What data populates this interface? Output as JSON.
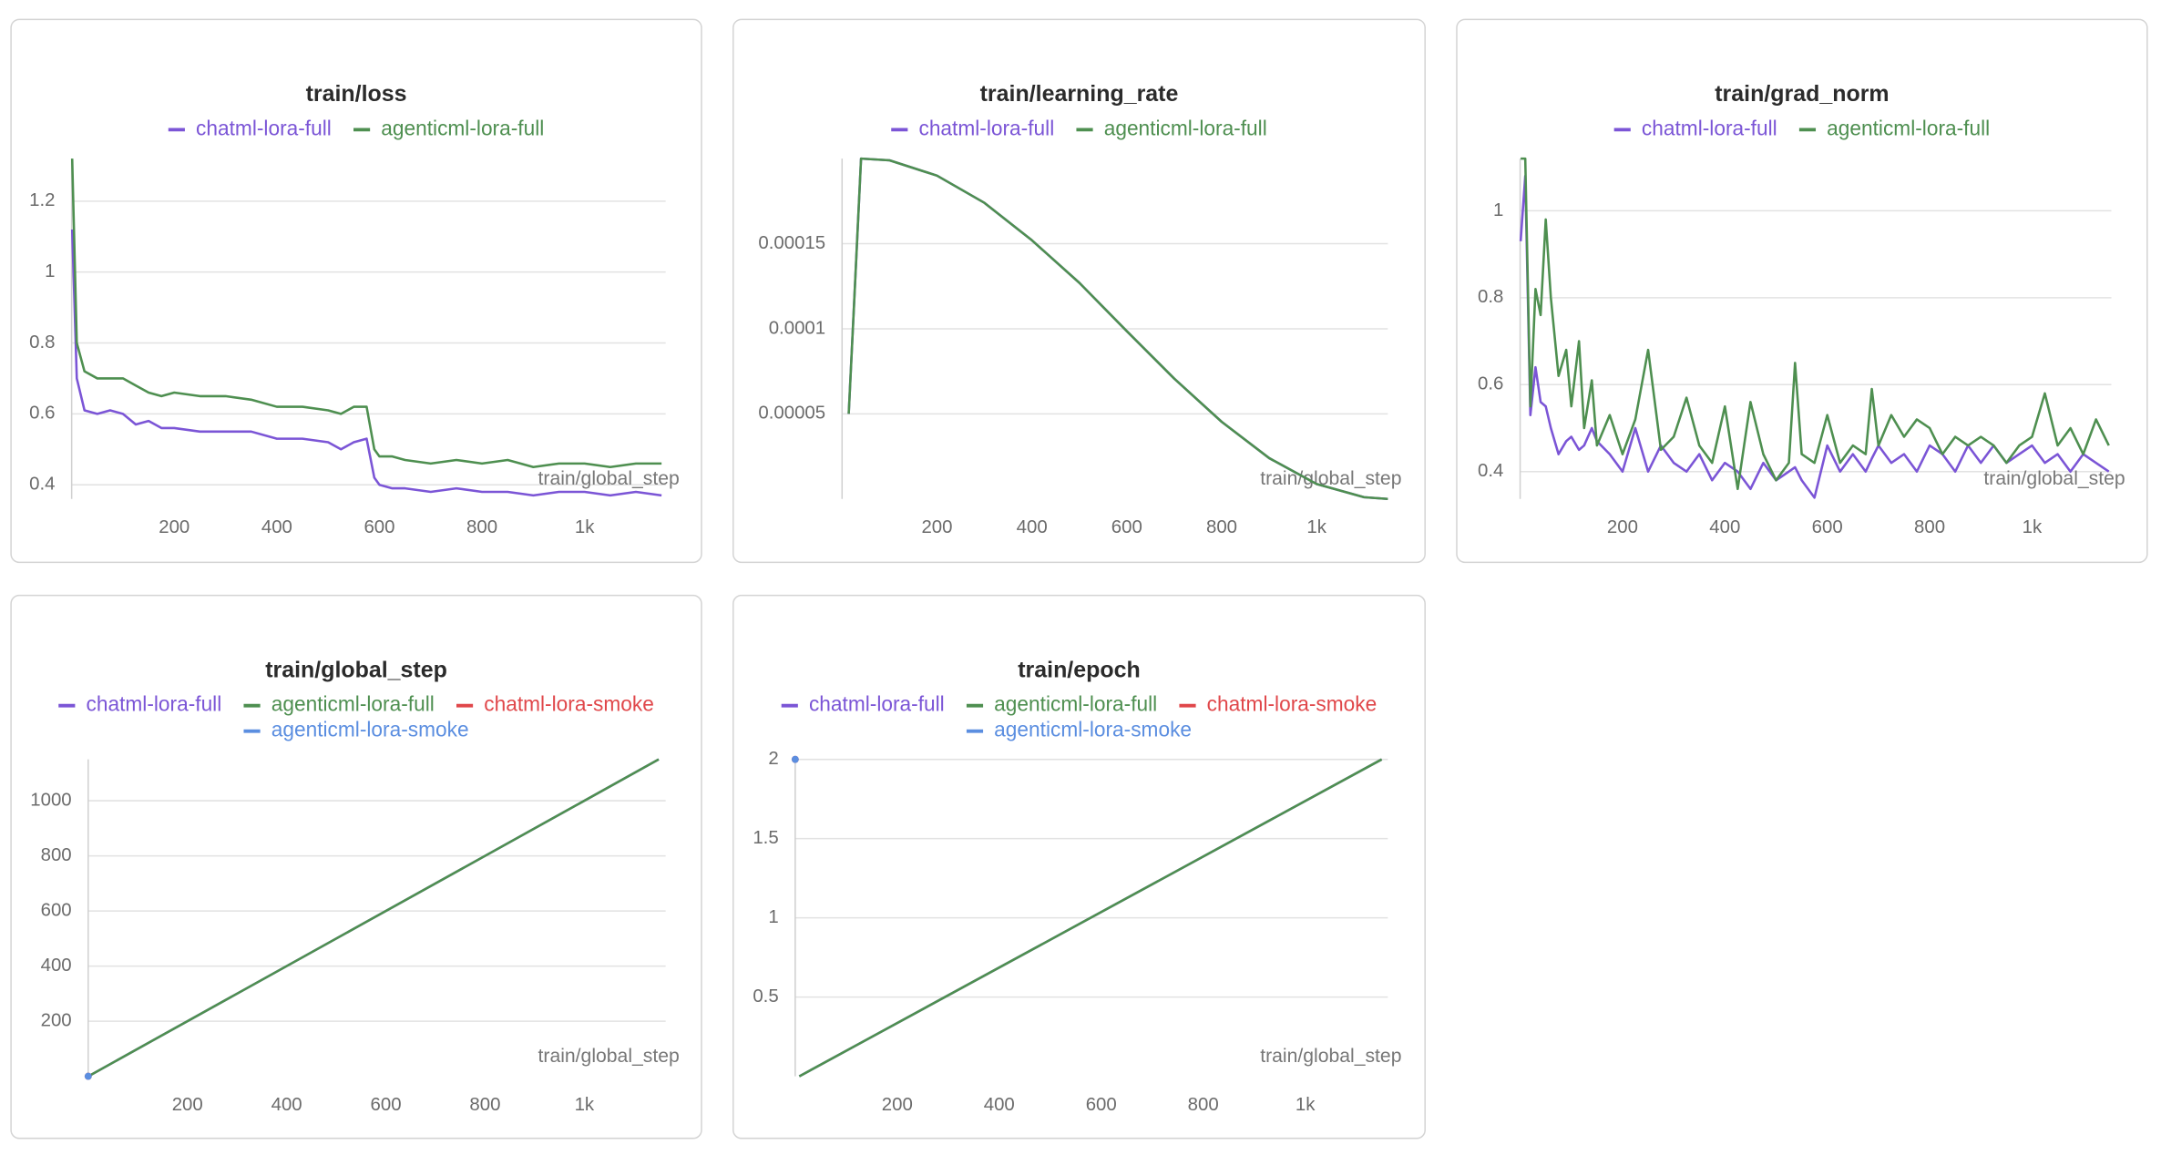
{
  "chart_data": [
    {
      "type": "line",
      "title": "train/loss",
      "xlabel": "train/global_step",
      "x": [
        1,
        10,
        25,
        50,
        75,
        100,
        125,
        150,
        175,
        200,
        250,
        300,
        350,
        400,
        450,
        500,
        525,
        550,
        575,
        590,
        600,
        625,
        650,
        700,
        750,
        800,
        850,
        900,
        950,
        1000,
        1050,
        1100,
        1150
      ],
      "series": [
        {
          "name": "chatml-lora-full",
          "color": "#7b55d6",
          "values": [
            1.12,
            0.7,
            0.61,
            0.6,
            0.61,
            0.6,
            0.57,
            0.58,
            0.56,
            0.56,
            0.55,
            0.55,
            0.55,
            0.53,
            0.53,
            0.52,
            0.5,
            0.52,
            0.53,
            0.42,
            0.4,
            0.39,
            0.39,
            0.38,
            0.39,
            0.38,
            0.38,
            0.37,
            0.38,
            0.38,
            0.37,
            0.38,
            0.37
          ]
        },
        {
          "name": "agenticml-lora-full",
          "color": "#4e8f50",
          "values": [
            1.32,
            0.8,
            0.72,
            0.7,
            0.7,
            0.7,
            0.68,
            0.66,
            0.65,
            0.66,
            0.65,
            0.65,
            0.64,
            0.62,
            0.62,
            0.61,
            0.6,
            0.62,
            0.62,
            0.5,
            0.48,
            0.48,
            0.47,
            0.46,
            0.47,
            0.46,
            0.47,
            0.45,
            0.46,
            0.46,
            0.45,
            0.46,
            0.46
          ]
        }
      ],
      "xlim": [
        0,
        1158
      ],
      "ylim": [
        0.36,
        1.32
      ],
      "xticks": [
        200,
        400,
        600,
        800,
        {
          "value": 1000,
          "label": "1k"
        }
      ],
      "yticks": [
        0.4,
        0.6,
        0.8,
        1,
        1.2
      ],
      "grid": true
    },
    {
      "type": "line",
      "title": "train/learning_rate",
      "xlabel": "train/global_step",
      "x": [
        14,
        25,
        40,
        100,
        200,
        300,
        400,
        500,
        600,
        700,
        800,
        900,
        1000,
        1100,
        1150
      ],
      "series": [
        {
          "name": "chatml-lora-full",
          "color": "#7b55d6",
          "values": [
            5e-05,
            0.000113,
            0.0002,
            0.000199,
            0.00019,
            0.000174,
            0.000152,
            0.000127,
            9.86e-05,
            7.07e-05,
            4.53e-05,
            2.4e-05,
            8.8e-06,
            1e-06,
            0
          ]
        },
        {
          "name": "agenticml-lora-full",
          "color": "#4e8f50",
          "values": [
            5e-05,
            0.000113,
            0.0002,
            0.000199,
            0.00019,
            0.000174,
            0.000152,
            0.000127,
            9.86e-05,
            7.07e-05,
            4.53e-05,
            2.4e-05,
            8.8e-06,
            1e-06,
            0
          ]
        }
      ],
      "xlim": [
        0,
        1150
      ],
      "ylim": [
        0,
        0.0002
      ],
      "xticks": [
        200,
        400,
        600,
        800,
        {
          "value": 1000,
          "label": "1k"
        }
      ],
      "yticks": [
        5e-05,
        0.0001,
        0.00015
      ],
      "grid": true
    },
    {
      "type": "line",
      "title": "train/grad_norm",
      "xlabel": "train/global_step",
      "x": [
        1,
        10,
        20,
        30,
        40,
        50,
        60,
        75,
        90,
        100,
        115,
        125,
        140,
        150,
        175,
        200,
        225,
        250,
        275,
        300,
        325,
        350,
        375,
        400,
        425,
        450,
        475,
        500,
        525,
        537,
        550,
        575,
        600,
        625,
        650,
        675,
        687,
        700,
        725,
        750,
        775,
        800,
        825,
        850,
        875,
        900,
        925,
        950,
        975,
        1000,
        1025,
        1050,
        1075,
        1100,
        1125,
        1150
      ],
      "series": [
        {
          "name": "chatml-lora-full",
          "color": "#7b55d6",
          "values": [
            0.93,
            1.08,
            0.53,
            0.64,
            0.56,
            0.55,
            0.5,
            0.44,
            0.47,
            0.48,
            0.45,
            0.46,
            0.5,
            0.47,
            0.44,
            0.4,
            0.5,
            0.4,
            0.46,
            0.42,
            0.4,
            0.44,
            0.38,
            0.42,
            0.4,
            0.36,
            0.42,
            0.38,
            0.4,
            0.41,
            0.38,
            0.34,
            0.46,
            0.4,
            0.44,
            0.4,
            0.43,
            0.46,
            0.42,
            0.44,
            0.4,
            0.46,
            0.44,
            0.4,
            0.46,
            0.42,
            0.46,
            0.42,
            0.44,
            0.46,
            0.42,
            0.44,
            0.4,
            0.44,
            0.42,
            0.4
          ]
        },
        {
          "name": "agenticml-lora-full",
          "color": "#4e8f50",
          "values": [
            1.12,
            1.12,
            0.55,
            0.82,
            0.76,
            0.98,
            0.8,
            0.62,
            0.68,
            0.55,
            0.7,
            0.5,
            0.61,
            0.46,
            0.53,
            0.44,
            0.52,
            0.68,
            0.45,
            0.48,
            0.57,
            0.46,
            0.42,
            0.55,
            0.36,
            0.56,
            0.44,
            0.38,
            0.42,
            0.65,
            0.44,
            0.42,
            0.53,
            0.42,
            0.46,
            0.44,
            0.59,
            0.46,
            0.53,
            0.48,
            0.52,
            0.5,
            0.44,
            0.48,
            0.46,
            0.48,
            0.46,
            0.42,
            0.46,
            0.48,
            0.58,
            0.46,
            0.5,
            0.44,
            0.52,
            0.46
          ]
        }
      ],
      "xlim": [
        0,
        1155
      ],
      "ylim": [
        0.337,
        1.12
      ],
      "xticks": [
        200,
        400,
        600,
        800,
        {
          "value": 1000,
          "label": "1k"
        }
      ],
      "yticks": [
        0.4,
        0.6,
        0.8,
        1
      ],
      "grid": true
    },
    {
      "type": "line",
      "title": "train/global_step",
      "xlabel": "train/global_step",
      "x": [
        1,
        1150
      ],
      "series": [
        {
          "name": "chatml-lora-full",
          "color": "#7b55d6",
          "values": [
            1,
            1150
          ]
        },
        {
          "name": "agenticml-lora-full",
          "color": "#4e8f50",
          "values": [
            1,
            1150
          ]
        },
        {
          "name": "chatml-lora-smoke",
          "color": "#e0474a",
          "x": [
            0
          ],
          "values": [
            0
          ]
        },
        {
          "name": "agenticml-lora-smoke",
          "color": "#5b8ee0",
          "x": [
            0
          ],
          "values": [
            0
          ]
        }
      ],
      "xlim": [
        0,
        1164
      ],
      "ylim": [
        0,
        1150
      ],
      "xticks": [
        200,
        400,
        600,
        800,
        {
          "value": 1000,
          "label": "1k"
        }
      ],
      "yticks": [
        200,
        400,
        600,
        800,
        1000
      ],
      "grid": true
    },
    {
      "type": "line",
      "title": "train/epoch",
      "xlabel": "train/global_step",
      "x": [
        8,
        1150
      ],
      "series": [
        {
          "name": "chatml-lora-full",
          "color": "#7b55d6",
          "values": [
            0,
            2
          ]
        },
        {
          "name": "agenticml-lora-full",
          "color": "#4e8f50",
          "values": [
            0,
            2
          ]
        },
        {
          "name": "chatml-lora-smoke",
          "color": "#e0474a",
          "x": [
            0
          ],
          "values": [
            2
          ]
        },
        {
          "name": "agenticml-lora-smoke",
          "color": "#5b8ee0",
          "x": [
            0
          ],
          "values": [
            2
          ]
        }
      ],
      "xlim": [
        0,
        1162
      ],
      "ylim": [
        0,
        2
      ],
      "xticks": [
        200,
        400,
        600,
        800,
        {
          "value": 1000,
          "label": "1k"
        }
      ],
      "yticks": [
        0.5,
        1,
        1.5,
        2
      ],
      "grid": true
    }
  ]
}
